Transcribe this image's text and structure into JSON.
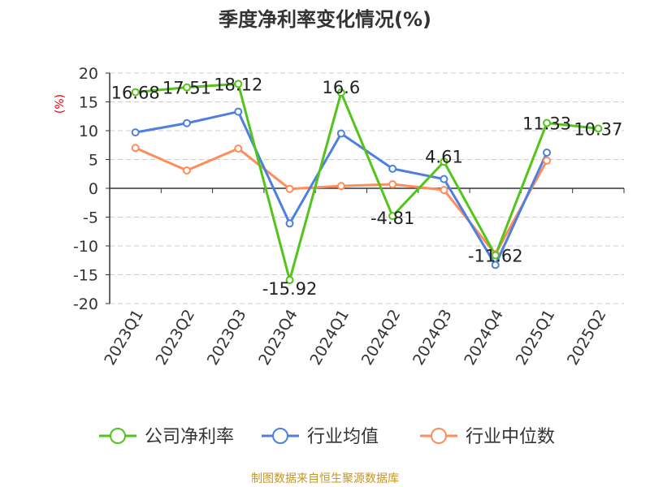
{
  "chart_data": {
    "type": "line",
    "title": "季度净利率变化情况(%)",
    "ylabel": "(%)",
    "ylim": [
      -20,
      20
    ],
    "yticks": [
      20,
      15,
      10,
      5,
      0,
      -5,
      -10,
      -15,
      -20
    ],
    "grid": true,
    "legend_placement": "bottom",
    "categories": [
      "2023Q1",
      "2023Q2",
      "2023Q3",
      "2023Q4",
      "2024Q1",
      "2024Q2",
      "2024Q3",
      "2024Q4",
      "2025Q1",
      "2025Q2"
    ],
    "series": [
      {
        "name": "公司净利率",
        "color": "#52c41a",
        "labels": true,
        "values": [
          16.68,
          17.51,
          18.12,
          -15.92,
          16.6,
          -4.81,
          4.61,
          -11.62,
          11.33,
          10.37
        ]
      },
      {
        "name": "行业均值",
        "color": "#4e7fe0",
        "labels": false,
        "values": [
          9.7,
          11.3,
          13.3,
          -6.1,
          9.5,
          3.4,
          1.6,
          -13.3,
          6.2,
          null
        ]
      },
      {
        "name": "行业中位数",
        "color": "#ff8c5a",
        "labels": false,
        "values": [
          7.0,
          3.1,
          6.9,
          -0.1,
          0.4,
          0.7,
          -0.3,
          -11.4,
          4.8,
          null
        ]
      }
    ]
  },
  "footer": {
    "source": "制图数据来自恒生聚源数据库",
    "source_color": "#c8961e"
  }
}
